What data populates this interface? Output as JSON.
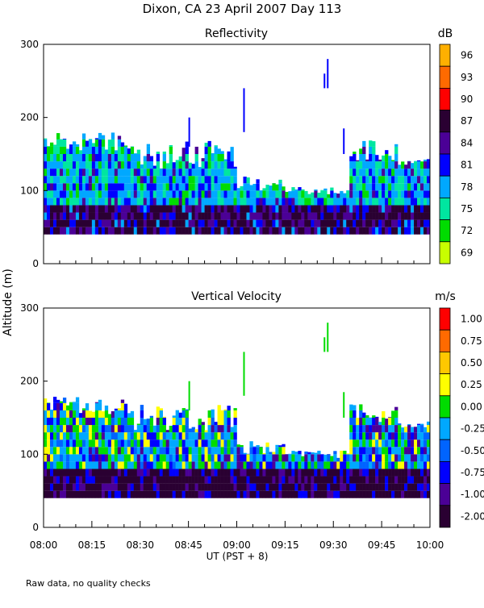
{
  "figure": {
    "title": "Dixon, CA 23 April 2007  Day 113",
    "ylabel": "Altitude (m)",
    "xlabel": "UT  (PST + 8)",
    "footer": "Raw data, no quality checks"
  },
  "chart_data": [
    {
      "type": "heatmap",
      "title": "Reflectivity",
      "xlabel": "UT  (PST + 8)",
      "ylabel": "Altitude (m)",
      "xlim": [
        "08:00",
        "10:00"
      ],
      "ylim": [
        0,
        300
      ],
      "yticks": [
        "0",
        "100",
        "200",
        "300"
      ],
      "colorbar": {
        "units": "dB",
        "labels": [
          "96",
          "93",
          "90",
          "87",
          "84",
          "81",
          "78",
          "75",
          "72",
          "69"
        ],
        "colors": [
          "#ffb000",
          "#ff6a00",
          "#ff0000",
          "#2a0032",
          "#4b0096",
          "#0000ff",
          "#00a8ff",
          "#00e6a0",
          "#00dc00",
          "#c8ff00"
        ]
      },
      "features": {
        "echo_base_m": 40,
        "main_top_m": 180,
        "plume_09_00_top_m": 240,
        "plume_09_28_top_m": 280
      }
    },
    {
      "type": "heatmap",
      "title": "Vertical Velocity",
      "xlabel": "UT  (PST + 8)",
      "ylabel": "Altitude (m)",
      "xlim": [
        "08:00",
        "10:00"
      ],
      "ylim": [
        0,
        300
      ],
      "yticks": [
        "0",
        "100",
        "200",
        "300"
      ],
      "colorbar": {
        "units": "m/s",
        "labels": [
          "1.00",
          "0.75",
          "0.50",
          "0.25",
          "0.00",
          "-0.25",
          "-0.50",
          "-0.75",
          "-1.00",
          "-2.00"
        ],
        "colors": [
          "#ff0000",
          "#ff6a00",
          "#ffc800",
          "#ffff00",
          "#00dc00",
          "#00a8ff",
          "#0064ff",
          "#0000ff",
          "#4b0096",
          "#2a0032"
        ]
      },
      "features": {
        "echo_base_m": 40,
        "main_top_m": 180,
        "plume_09_00_top_m": 240,
        "plume_09_28_top_m": 280
      }
    }
  ],
  "xticks": [
    "08:00",
    "08:15",
    "08:30",
    "08:45",
    "09:00",
    "09:15",
    "09:30",
    "09:45",
    "10:00"
  ]
}
